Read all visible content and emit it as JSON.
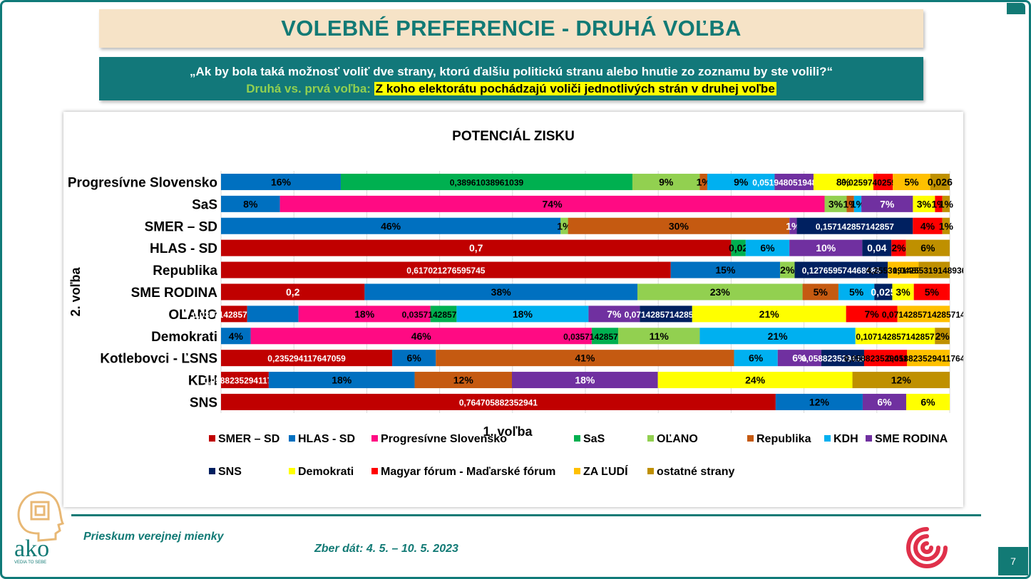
{
  "header": {
    "title": "VOLEBNÉ PREFERENCIE - DRUHÁ VOĽBA",
    "question": "„Ak by bola taká možnosť voliť dve strany, ktorú ďalšiu politickú stranu alebo hnutie zo zoznamu by ste volili?“",
    "subtitle_lead": "Druhá vs. prvá voľba:",
    "subtitle_highlight": "Z koho elektorátu pochádzajú voliči jednotlivých strán v druhej voľbe"
  },
  "footer": {
    "left_text": "Prieskum verejnej mienky",
    "date_text": "Zber dát: 4. 5. – 10. 5. 2023",
    "page_number": "7",
    "logo_text": "ako",
    "logo_sub": "VEDIA TO SEBE"
  },
  "colors": {
    "teal": "#127a75",
    "title_bg": "#f6e3c7",
    "highlight": "#ffff00"
  },
  "chart_data": {
    "type": "bar",
    "orientation": "horizontal",
    "stacked": "100%",
    "title": "POTENCIÁL ZISKU",
    "xlabel": "1. voľba",
    "ylabel": "2. voľba",
    "legend_position": "bottom",
    "grid": true,
    "categories": [
      "Progresívne Slovensko",
      "SaS",
      "SMER – SD",
      "HLAS - SD",
      "Republika",
      "SME RODINA",
      "OĽANO",
      "Demokrati",
      "Kotlebovci - ĽSNS",
      "KDH",
      "SNS"
    ],
    "series": [
      {
        "name": "SMER – SD",
        "color": "#c00000",
        "labelColor": "#ffffff",
        "values": [
          0,
          0,
          0,
          0.7,
          0.617021276595745,
          0.2,
          0.0357142857142857,
          0,
          0.235294117647059,
          0.0588235294117647,
          0.764705882352941
        ],
        "labels": [
          "",
          "",
          "",
          "0,7",
          "0,617021276595745",
          "0,2",
          "0,0357142857142857",
          "",
          "0,235294117647059",
          "0,0588235294117647",
          "0,764705882352941"
        ]
      },
      {
        "name": "HLAS - SD",
        "color": "#0070c0",
        "labelColor": "#000000",
        "values": [
          0.16,
          0.08,
          0.46,
          0,
          0.15,
          0.38,
          0.07,
          0.04,
          0.06,
          0.18,
          0.12
        ],
        "labels": [
          "16%",
          "8%",
          "46%",
          "",
          "15%",
          "38%",
          "",
          "4%",
          "6%",
          "18%",
          "12%"
        ]
      },
      {
        "name": "Progresívne Slovensko",
        "color": "#ff0a83",
        "labelColor": "#000000",
        "values": [
          0,
          0.74,
          0,
          0,
          0,
          0,
          0.18,
          0.46,
          0,
          0,
          0
        ],
        "labels": [
          "",
          "74%",
          "",
          "",
          "",
          "",
          "18%",
          "46%",
          "",
          "",
          ""
        ]
      },
      {
        "name": "SaS",
        "color": "#00b050",
        "labelColor": "#000000",
        "values": [
          0.38961038961039,
          0,
          0,
          0.02,
          0,
          0,
          0.0357142857142857,
          0.0357142857142857,
          0,
          0,
          0
        ],
        "labels": [
          "0,38961038961039",
          "",
          "",
          "0,02",
          "",
          "",
          "0,0357142857142857",
          "0,0357142857142857",
          "",
          "",
          ""
        ]
      },
      {
        "name": "OĽANO",
        "color": "#92d050",
        "labelColor": "#000000",
        "values": [
          0.09,
          0.03,
          0.01,
          0,
          0.02,
          0.23,
          0,
          0.11,
          0,
          0,
          0
        ],
        "labels": [
          "9%",
          "3%",
          "1%",
          "",
          "2%",
          "23%",
          "",
          "11%",
          "",
          "",
          ""
        ]
      },
      {
        "name": "Republika",
        "color": "#c55a11",
        "labelColor": "#000000",
        "values": [
          0.01,
          0.01,
          0.3,
          0,
          0,
          0.05,
          0,
          0,
          0.41,
          0.12,
          0
        ],
        "labels": [
          "1%",
          "1%",
          "30%",
          "",
          "",
          "5%",
          "",
          "",
          "41%",
          "12%",
          ""
        ]
      },
      {
        "name": "KDH",
        "color": "#00b0f0",
        "labelColor": "#000000",
        "values": [
          0.09,
          0.01,
          0,
          0.06,
          0,
          0.05,
          0.18,
          0.21,
          0.06,
          0,
          0
        ],
        "labels": [
          "9%",
          "1%",
          "",
          "6%",
          "",
          "5%",
          "18%",
          "21%",
          "6%",
          "",
          ""
        ]
      },
      {
        "name": "SME RODINA",
        "color": "#7030a0",
        "labelColor": "#ffffff",
        "values": [
          0.0519480519480519,
          0.07,
          0.01,
          0.1,
          0,
          0,
          0.07,
          0,
          0.06,
          0.18,
          0.06
        ],
        "labels": [
          "0,0519480519480519",
          "7%",
          "1%",
          "10%",
          "",
          "",
          "7%",
          "",
          "6%",
          "18%",
          "6%"
        ]
      },
      {
        "name": "SNS",
        "color": "#002060",
        "labelColor": "#ffffff",
        "values": [
          0,
          0,
          0.157142857142857,
          0.04,
          0.127659574468085,
          0.025,
          0.0714285714285714,
          0,
          0.0588235294117647,
          0,
          0
        ],
        "labels": [
          "",
          "",
          "0,157142857142857",
          "0,04",
          "0,127659574468085",
          "0,025",
          "0,0714285714285714",
          "",
          "0,0588235294117647",
          "",
          ""
        ]
      },
      {
        "name": "Demokrati",
        "color": "#ffff00",
        "labelColor": "#000000",
        "values": [
          0.08,
          0.03,
          0,
          0,
          0,
          0.03,
          0.21,
          0.107142857142857,
          0,
          0.24,
          0.06
        ],
        "labels": [
          "8%",
          "3%",
          "",
          "",
          "",
          "3%",
          "21%",
          "0,107142857142857",
          "",
          "24%",
          "6%"
        ]
      },
      {
        "name": "Magyar fórum - Maďarské fórum",
        "color": "#ff0000",
        "labelColor": "#000000",
        "values": [
          0.0259740259740259,
          0.01,
          0.04,
          0.02,
          0,
          0.05,
          0.07,
          0,
          0.0588235294117647,
          0,
          0
        ],
        "labels": [
          "0,0259740259740259",
          "1%",
          "4%",
          "2%",
          "",
          "5%",
          "7%",
          "",
          "0,0588235294117647",
          "",
          ""
        ]
      },
      {
        "name": "ZA ĽUDÍ",
        "color": "#ffc000",
        "labelColor": "#000000",
        "values": [
          0.05,
          0,
          0,
          0,
          0.0425531914893617,
          0,
          0.0714285714285714,
          0,
          0.0588235294117647,
          0,
          0
        ],
        "labels": [
          "5%",
          "",
          "",
          "",
          "4,25531914893617",
          "",
          "0,0714285714285714",
          "",
          "0,0588235294117647",
          "",
          ""
        ]
      },
      {
        "name": "ostatné strany",
        "color": "#bf9000",
        "labelColor": "#000000",
        "values": [
          0.026,
          0.01,
          0.01,
          0.06,
          0.0425531914893617,
          0,
          0,
          0.02,
          0,
          0.12,
          0
        ],
        "labels": [
          "0,026",
          "1%",
          "1%",
          "6%",
          "0,0425531914893617",
          "",
          "",
          "2%",
          "",
          "12%",
          ""
        ]
      }
    ]
  }
}
